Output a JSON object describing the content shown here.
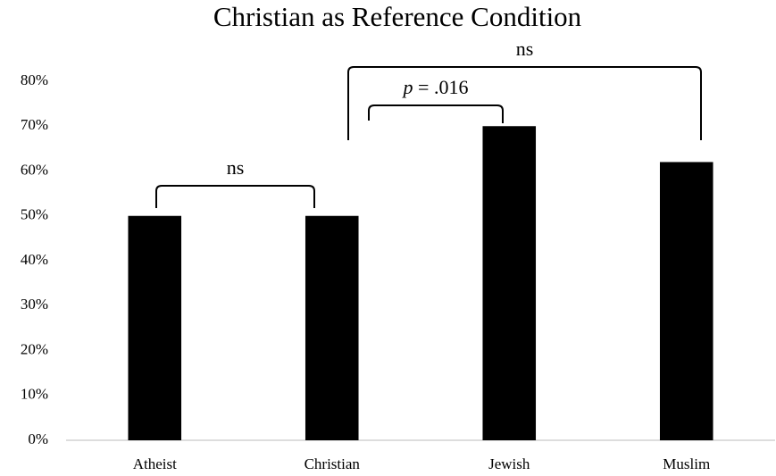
{
  "chart_data": {
    "type": "bar",
    "title": "Christian as Reference Condition",
    "categories": [
      "Atheist",
      "Christian",
      "Jewish",
      "Muslim"
    ],
    "values": [
      50,
      50,
      70,
      62
    ],
    "color": "#000000",
    "ylim": [
      0,
      80
    ],
    "yticks": [
      {
        "value": 0,
        "label": "0%"
      },
      {
        "value": 10,
        "label": "10%"
      },
      {
        "value": 20,
        "label": "20%"
      },
      {
        "value": 30,
        "label": "30%"
      },
      {
        "value": 40,
        "label": "40%"
      },
      {
        "value": 50,
        "label": "50%"
      },
      {
        "value": 60,
        "label": "60%"
      },
      {
        "value": 70,
        "label": "70%"
      },
      {
        "value": 80,
        "label": "80%"
      }
    ],
    "grid": false,
    "annotations": [
      {
        "text": "ns",
        "between": [
          "Atheist",
          "Christian"
        ]
      },
      {
        "text": "p = .016",
        "between": [
          "Christian",
          "Jewish"
        ]
      },
      {
        "text": "ns",
        "between": [
          "Christian",
          "Muslim"
        ]
      }
    ]
  }
}
